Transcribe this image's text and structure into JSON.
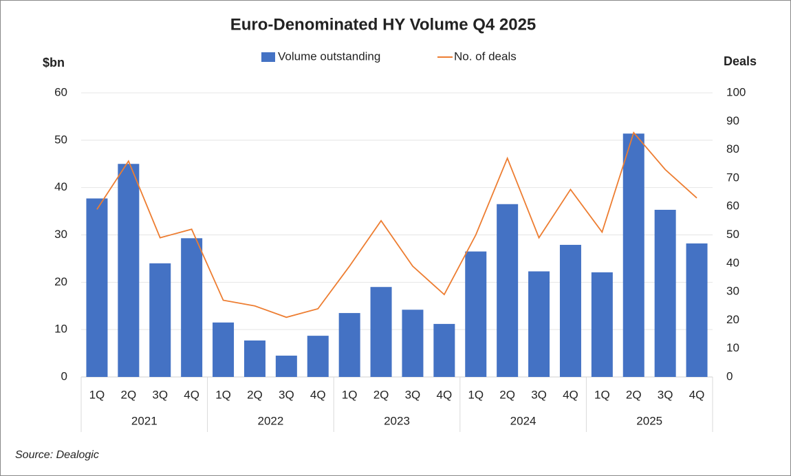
{
  "chart_data": {
    "type": "bar-line",
    "title": "Euro-Denominated HY Volume Q4 2025",
    "y_label": "$bn",
    "y2_label": "Deals",
    "categories": [
      "1Q",
      "2Q",
      "3Q",
      "4Q",
      "1Q",
      "2Q",
      "3Q",
      "4Q",
      "1Q",
      "2Q",
      "3Q",
      "4Q",
      "1Q",
      "2Q",
      "3Q",
      "4Q",
      "1Q",
      "2Q",
      "3Q",
      "4Q"
    ],
    "groups": [
      "2021",
      "2022",
      "2023",
      "2024",
      "2025"
    ],
    "series": [
      {
        "name": "Volume outstanding",
        "type": "bar",
        "color": "#4472c4",
        "values": [
          37.7,
          45,
          24,
          29.3,
          11.5,
          7.7,
          4.5,
          8.7,
          13.5,
          19,
          14.2,
          11.2,
          26.5,
          36.5,
          22.3,
          27.9,
          22.1,
          51.4,
          35.3,
          28.2
        ]
      },
      {
        "name": "No. of deals",
        "type": "line",
        "axis": "y2",
        "color": "#ed7d31",
        "values": [
          59,
          76,
          49,
          52,
          27,
          25,
          21,
          24,
          39,
          55,
          39,
          29,
          50,
          77,
          49,
          66,
          51,
          86,
          73,
          63
        ]
      }
    ],
    "ylim": [
      0,
      60
    ],
    "yticks": [
      0,
      10,
      20,
      30,
      40,
      50,
      60
    ],
    "y2lim": [
      0,
      100
    ],
    "y2ticks": [
      0,
      10,
      20,
      30,
      40,
      50,
      60,
      70,
      80,
      90,
      100
    ],
    "grid": true,
    "source": "Source: Dealogic"
  }
}
